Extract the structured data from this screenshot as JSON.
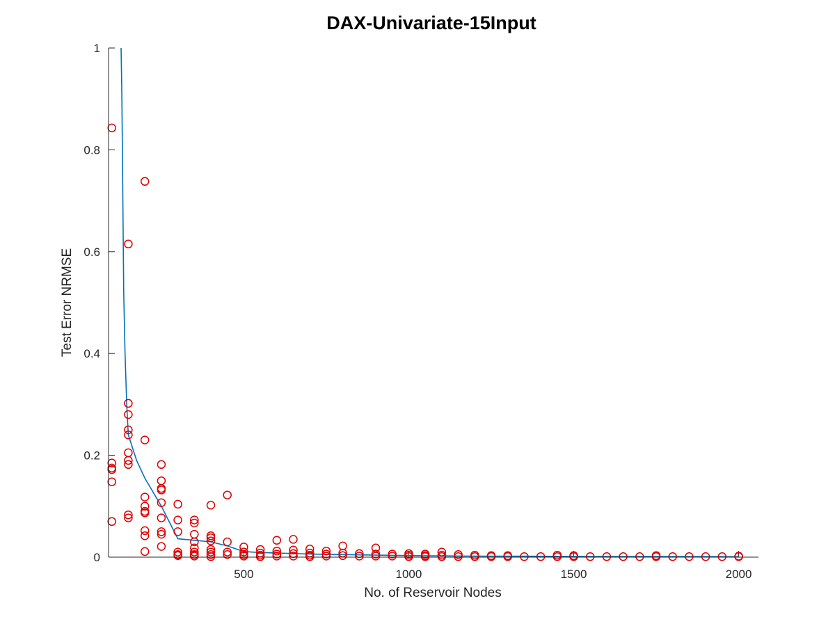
{
  "chart_data": {
    "type": "scatter",
    "title": "DAX-Univariate-15Input",
    "xlabel": "No. of Reservoir Nodes",
    "ylabel": "Test Error NRMSE",
    "xlim": [
      90,
      2060
    ],
    "ylim": [
      0,
      1
    ],
    "xticks": [
      500,
      1000,
      1500,
      2000
    ],
    "yticks": [
      0,
      0.2,
      0.4,
      0.6,
      0.8,
      1
    ],
    "xtick_labels": [
      "500",
      "1000",
      "1500",
      "2000"
    ],
    "ytick_labels": [
      "0",
      "0.2",
      "0.4",
      "0.6",
      "0.8",
      "1"
    ],
    "grid": false,
    "colors": {
      "points": "#e00000",
      "line": "#0072bd",
      "axis": "#262626"
    },
    "series": [
      {
        "type": "scatter",
        "marker": "circle",
        "x": [
          100,
          100,
          100,
          100,
          100,
          100,
          150,
          150,
          150,
          150,
          150,
          150,
          150,
          150,
          150,
          150,
          200,
          200,
          200,
          200,
          200,
          200,
          200,
          200,
          200,
          250,
          250,
          250,
          250,
          250,
          250,
          250,
          250,
          250,
          300,
          300,
          300,
          300,
          300,
          300,
          350,
          350,
          350,
          350,
          350,
          350,
          350,
          350,
          400,
          400,
          400,
          400,
          400,
          400,
          400,
          400,
          450,
          450,
          450,
          450,
          500,
          500,
          500,
          500,
          550,
          550,
          550,
          550,
          600,
          600,
          600,
          600,
          650,
          650,
          650,
          650,
          700,
          700,
          700,
          700,
          750,
          750,
          750,
          800,
          800,
          800,
          850,
          850,
          900,
          900,
          900,
          950,
          950,
          1000,
          1000,
          1000,
          1050,
          1050,
          1050,
          1100,
          1100,
          1100,
          1150,
          1150,
          1200,
          1200,
          1250,
          1250,
          1300,
          1300,
          1350,
          1400,
          1450,
          1450,
          1500,
          1500,
          1550,
          1600,
          1650,
          1700,
          1750,
          1750,
          1800,
          1850,
          1900,
          1950,
          2000,
          2000
        ],
        "y": [
          0.843,
          0.185,
          0.175,
          0.172,
          0.148,
          0.07,
          0.615,
          0.302,
          0.28,
          0.25,
          0.205,
          0.19,
          0.182,
          0.083,
          0.077,
          0.24,
          0.738,
          0.23,
          0.118,
          0.1,
          0.09,
          0.087,
          0.052,
          0.042,
          0.011,
          0.182,
          0.15,
          0.135,
          0.132,
          0.107,
          0.077,
          0.05,
          0.045,
          0.021,
          0.104,
          0.073,
          0.05,
          0.01,
          0.005,
          0.003,
          0.073,
          0.067,
          0.045,
          0.03,
          0.018,
          0.01,
          0.005,
          0.002,
          0.102,
          0.042,
          0.038,
          0.032,
          0.015,
          0.01,
          0.005,
          0.001,
          0.122,
          0.03,
          0.01,
          0.005,
          0.02,
          0.01,
          0.005,
          0.002,
          0.015,
          0.008,
          0.004,
          0.001,
          0.033,
          0.012,
          0.006,
          0.002,
          0.035,
          0.014,
          0.007,
          0.002,
          0.016,
          0.008,
          0.004,
          0.001,
          0.012,
          0.006,
          0.002,
          0.022,
          0.008,
          0.003,
          0.007,
          0.002,
          0.018,
          0.006,
          0.002,
          0.006,
          0.002,
          0.007,
          0.004,
          0.001,
          0.006,
          0.003,
          0.001,
          0.01,
          0.004,
          0.001,
          0.005,
          0.001,
          0.004,
          0.001,
          0.003,
          0.001,
          0.003,
          0.001,
          0.001,
          0.001,
          0.004,
          0.001,
          0.003,
          0.001,
          0.001,
          0.001,
          0.001,
          0.001,
          0.003,
          0.001,
          0.001,
          0.001,
          0.001,
          0.001,
          0.002,
          0.001
        ]
      },
      {
        "type": "line",
        "x": [
          128,
          130,
          132,
          134,
          136,
          140,
          145,
          150,
          175,
          200,
          250,
          300,
          350,
          400,
          450,
          500,
          550,
          600,
          700,
          800,
          900,
          1000,
          1200,
          1500,
          1750,
          2000
        ],
        "y": [
          1.0,
          0.92,
          0.8,
          0.65,
          0.52,
          0.4,
          0.3,
          0.24,
          0.19,
          0.155,
          0.1,
          0.036,
          0.033,
          0.03,
          0.022,
          0.011,
          0.009,
          0.008,
          0.006,
          0.005,
          0.004,
          0.003,
          0.002,
          0.0015,
          0.0012,
          0.001
        ]
      }
    ]
  }
}
